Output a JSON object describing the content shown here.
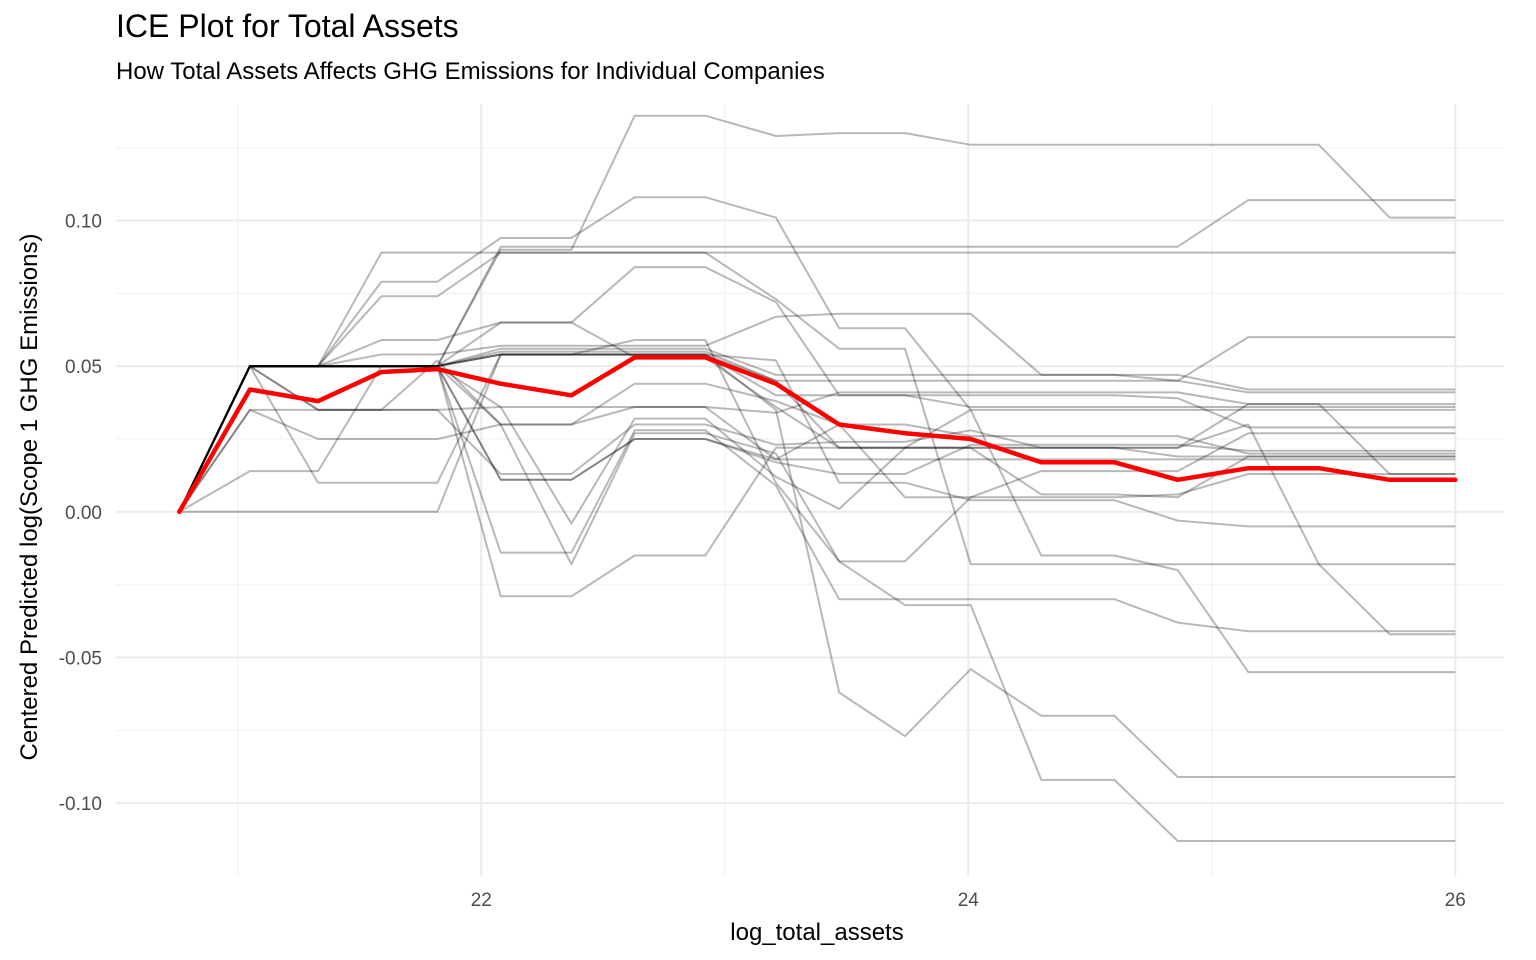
{
  "chart_data": {
    "type": "line",
    "title": "ICE Plot for Total Assets",
    "subtitle": "How Total Assets Affects GHG Emissions for Individual Companies",
    "xlabel": "log_total_assets",
    "ylabel": "Centered Predicted log(Scope 1 GHG Emissions)",
    "xlim": [
      20.5,
      26.2
    ],
    "ylim": [
      -0.125,
      0.14
    ],
    "x_ticks": [
      22,
      24,
      26
    ],
    "x_tick_labels": [
      "22",
      "24",
      "26"
    ],
    "y_ticks": [
      -0.1,
      -0.05,
      0,
      0.05,
      0.1
    ],
    "y_tick_labels": [
      "-0.10",
      "-0.05",
      "0.00",
      "0.05",
      "0.10"
    ],
    "grid": true,
    "legend": "none",
    "colors": {
      "ice": "#000000",
      "average": "#ff0000",
      "grid": "#ebebeb"
    },
    "x": [
      20.76,
      21.05,
      21.33,
      21.59,
      21.82,
      22.08,
      22.37,
      22.63,
      22.92,
      23.21,
      23.47,
      23.74,
      24.01,
      24.3,
      24.6,
      24.86,
      25.15,
      25.44,
      25.73,
      26.0
    ],
    "series": [
      {
        "values": [
          0,
          0.05,
          0.05,
          0.05,
          0.05,
          0.09,
          0.09,
          0.136,
          0.136,
          0.129,
          0.13,
          0.13,
          0.126,
          0.126,
          0.126,
          0.126,
          0.126,
          0.126,
          0.101,
          0.101
        ]
      },
      {
        "values": [
          0,
          0.05,
          0.05,
          0.089,
          0.089,
          0.089,
          0.089,
          0.089,
          0.089,
          0.089,
          0.089,
          0.089,
          0.089,
          0.089,
          0.089,
          0.089,
          0.089,
          0.089,
          0.089,
          0.089
        ]
      },
      {
        "values": [
          0,
          0.05,
          0.05,
          0.05,
          0.05,
          0.091,
          0.091,
          0.091,
          0.091,
          0.091,
          0.091,
          0.091,
          0.091,
          0.091,
          0.091,
          0.091,
          0.107,
          0.107,
          0.107,
          0.107
        ]
      },
      {
        "values": [
          0,
          0.05,
          0.05,
          0.079,
          0.079,
          0.094,
          0.094,
          0.108,
          0.108,
          0.101,
          0.063,
          0.063,
          0.035,
          0.035,
          0.035,
          0.035,
          0.035,
          0.035,
          0.035,
          0.035
        ]
      },
      {
        "values": [
          0,
          0.05,
          0.05,
          0.074,
          0.074,
          0.089,
          0.089,
          0.089,
          0.089,
          0.073,
          0.056,
          0.056,
          -0.018,
          -0.018,
          -0.018,
          -0.018,
          -0.018,
          -0.018,
          -0.042,
          -0.042
        ]
      },
      {
        "values": [
          0,
          0.05,
          0.05,
          0.059,
          0.059,
          0.065,
          0.065,
          0.084,
          0.084,
          0.072,
          0.04,
          0.04,
          0.04,
          0.04,
          0.04,
          0.039,
          0.029,
          0.029,
          0.029,
          0.029
        ]
      },
      {
        "values": [
          0,
          0.05,
          0.05,
          0.054,
          0.054,
          0.057,
          0.057,
          0.057,
          0.057,
          0.067,
          0.068,
          0.068,
          0.068,
          0.047,
          0.047,
          0.047,
          0.042,
          0.042,
          0.042,
          0.042
        ]
      },
      {
        "values": [
          0,
          0.05,
          0.05,
          0.05,
          0.05,
          0.056,
          0.056,
          0.056,
          0.056,
          0.047,
          0.047,
          0.047,
          0.047,
          0.047,
          0.047,
          0.045,
          0.06,
          0.06,
          0.06,
          0.06
        ]
      },
      {
        "values": [
          0,
          0.05,
          0.05,
          0.05,
          0.05,
          0.055,
          0.055,
          0.055,
          0.055,
          0.045,
          0.045,
          0.045,
          0.045,
          0.045,
          0.045,
          0.045,
          0.041,
          0.041,
          0.041,
          0.041
        ]
      },
      {
        "values": [
          0,
          0.05,
          0.05,
          0.05,
          0.05,
          0.054,
          0.054,
          0.054,
          0.054,
          0.04,
          0.04,
          0.04,
          0.036,
          0.036,
          0.036,
          0.036,
          0.036,
          0.036,
          0.036,
          0.036
        ]
      },
      {
        "values": [
          0,
          0.05,
          0.035,
          0.035,
          0.035,
          0.036,
          0.036,
          0.036,
          0.036,
          0.034,
          0.041,
          0.041,
          0.041,
          0.041,
          0.041,
          0.041,
          0.037,
          0.037,
          0.037,
          0.037
        ]
      },
      {
        "values": [
          0,
          0.05,
          0.05,
          0.05,
          0.05,
          0.065,
          0.065,
          0.053,
          0.053,
          0.036,
          0.022,
          0.022,
          0.022,
          0.022,
          0.022,
          0.022,
          0.037,
          0.037,
          0.013,
          0.013
        ]
      },
      {
        "values": [
          0,
          0.035,
          0.035,
          0.035,
          0.052,
          0.03,
          0.03,
          0.036,
          0.036,
          0.018,
          0.018,
          0.018,
          0.018,
          0.018,
          0.018,
          0.018,
          0.018,
          0.018,
          0.018,
          0.018
        ]
      },
      {
        "values": [
          0,
          0.035,
          0.025,
          0.025,
          0.025,
          0.03,
          0.03,
          0.044,
          0.044,
          0.038,
          0.03,
          0.03,
          0.026,
          0.026,
          0.026,
          0.026,
          0.02,
          0.02,
          0.02,
          0.02
        ]
      },
      {
        "values": [
          0,
          0.05,
          0.035,
          0.035,
          0.035,
          0.013,
          0.013,
          0.03,
          0.03,
          0.023,
          0.024,
          0.024,
          0.028,
          0.022,
          0.022,
          0.019,
          0.019,
          0.019,
          0.019,
          0.019
        ]
      },
      {
        "values": [
          0,
          0.05,
          0.05,
          0.05,
          0.05,
          0.011,
          0.011,
          0.025,
          0.025,
          0.017,
          0.013,
          0.013,
          0.023,
          0.023,
          0.023,
          0.023,
          0.021,
          0.021,
          0.021,
          0.021
        ]
      },
      {
        "values": [
          0,
          0.05,
          0.05,
          0.05,
          0.05,
          0.036,
          -0.004,
          0.032,
          0.032,
          0.012,
          0.001,
          0.022,
          0.022,
          0.006,
          0.006,
          0.005,
          0.019,
          0.019,
          0.019,
          0.019
        ]
      },
      {
        "values": [
          0,
          0.05,
          0.05,
          0.05,
          0.05,
          0.03,
          -0.018,
          0.027,
          0.027,
          0.02,
          -0.017,
          -0.017,
          0.005,
          0.005,
          0.005,
          0.006,
          0.013,
          0.013,
          0.013,
          0.013
        ]
      },
      {
        "values": [
          0,
          0.05,
          0.05,
          0.05,
          0.05,
          0.011,
          0.011,
          0.025,
          0.025,
          0.018,
          0.03,
          0.005,
          0.005,
          0.014,
          0.014,
          0.014,
          0.027,
          0.027,
          0.027,
          0.027
        ]
      },
      {
        "values": [
          0,
          0.05,
          0.05,
          0.05,
          0.05,
          -0.014,
          -0.014,
          0.028,
          0.028,
          0.009,
          -0.03,
          -0.03,
          -0.03,
          -0.03,
          -0.03,
          -0.038,
          -0.041,
          -0.041,
          -0.041,
          -0.041
        ]
      },
      {
        "values": [
          0,
          0.014,
          0.014,
          0.05,
          0.05,
          -0.029,
          -0.029,
          -0.015,
          -0.015,
          0.022,
          0.022,
          0.022,
          0.035,
          -0.015,
          -0.015,
          -0.02,
          -0.055,
          -0.055,
          -0.055,
          -0.055
        ]
      },
      {
        "values": [
          0,
          0.05,
          0.01,
          0.01,
          0.01,
          0.054,
          0.054,
          0.054,
          0.054,
          0.035,
          -0.062,
          -0.077,
          -0.054,
          -0.07,
          -0.07,
          -0.091,
          -0.091,
          -0.091,
          -0.091,
          -0.091
        ]
      },
      {
        "values": [
          0,
          0,
          0,
          0,
          0,
          0.054,
          0.054,
          0.054,
          0.054,
          0.052,
          0.01,
          0.01,
          0.004,
          0.004,
          0.004,
          -0.003,
          -0.005,
          -0.005,
          -0.005,
          -0.005
        ]
      },
      {
        "values": [
          0,
          0.05,
          0.05,
          0.05,
          0.05,
          0.054,
          0.054,
          0.059,
          0.059,
          0.01,
          -0.017,
          -0.032,
          -0.032,
          -0.092,
          -0.092,
          -0.113,
          -0.113,
          -0.113,
          -0.113,
          -0.113
        ]
      },
      {
        "values": [
          0,
          0.05,
          0.05,
          0.05,
          0.05,
          0.054,
          0.054,
          0.054,
          0.054,
          0.045,
          0.022,
          0.022,
          0.022,
          0.022,
          0.022,
          0.022,
          0.03,
          -0.018,
          -0.018,
          -0.018
        ]
      }
    ],
    "average": {
      "values": [
        0,
        0.042,
        0.038,
        0.048,
        0.049,
        0.044,
        0.04,
        0.053,
        0.053,
        0.044,
        0.03,
        0.027,
        0.025,
        0.017,
        0.017,
        0.011,
        0.015,
        0.015,
        0.011,
        0.011
      ]
    }
  }
}
